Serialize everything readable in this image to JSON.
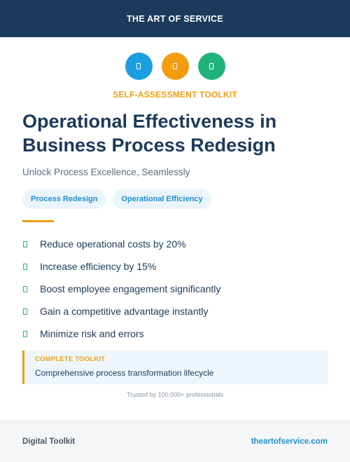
{
  "header": {
    "brand": "THE ART OF SERVICE"
  },
  "icons": [
    {
      "name": "blue-badge-icon",
      "color": "#1a9ee0"
    },
    {
      "name": "orange-badge-icon",
      "color": "#f39c12"
    },
    {
      "name": "green-badge-icon",
      "color": "#1fb37a"
    }
  ],
  "kicker": "SELF-ASSESSMENT TOOLKIT",
  "title": "Operational Effectiveness in Business Process Redesign",
  "subtitle": "Unlock Process Excellence, Seamlessly",
  "tags": [
    "Process Redesign",
    "Operational Efficiency"
  ],
  "benefits": [
    "Reduce operational costs by 20%",
    "Increase efficiency by 15%",
    "Boost employee engagement significantly",
    "Gain a competitive advantage instantly",
    "Minimize risk and errors"
  ],
  "callout": {
    "label": "COMPLETE TOOLKIT",
    "text": "Comprehensive process transformation lifecycle"
  },
  "trusted": "Trusted by 100,000+ professionals",
  "footer": {
    "left": "Digital Toolkit",
    "right": "theartofservice.com"
  },
  "colors": {
    "navy": "#1c3a5b",
    "accent": "#f39c12",
    "link": "#1f8fd6",
    "check": "#27ae60"
  }
}
